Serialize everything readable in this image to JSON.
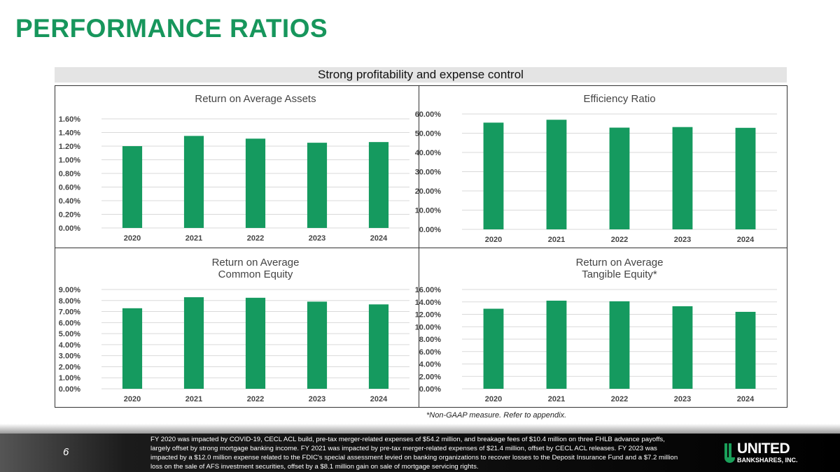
{
  "title": "PERFORMANCE RATIOS",
  "banner": "Strong profitability and expense control",
  "note": "*Non-GAAP measure.  Refer to appendix.",
  "footer": {
    "page": "6",
    "text": "FY 2020 was impacted by COVID-19, CECL ACL build, pre-tax merger-related expenses of $54.2 million, and breakage fees of $10.4 million on three FHLB advance payoffs, largely offset by strong mortgage banking income. FY 2021 was impacted by pre-tax merger-related expenses of $21.4 million, offset by CECL ACL releases. FY 2023 was impacted by a $12.0 million expense related to the FDIC's special assessment levied on banking organizations to recover losses to the Deposit Insurance Fund and a $7.2 million loss on the sale of AFS investment securities, offset by a $8.1 million gain on sale of mortgage servicing rights.",
    "logo_name": "UNITED",
    "logo_sub": "BANKSHARES, INC."
  },
  "colors": {
    "bar": "#159a5f",
    "title": "#17965c",
    "grid": "#d9d9d9"
  },
  "chart_data": [
    {
      "type": "bar",
      "title": [
        "Return on Average Assets"
      ],
      "categories": [
        "2020",
        "2021",
        "2022",
        "2023",
        "2024"
      ],
      "values": [
        1.2,
        1.35,
        1.31,
        1.25,
        1.26
      ],
      "ylim": [
        0,
        1.6
      ],
      "ystep": 0.2,
      "decimals": 2,
      "yticks": [
        "0.00%",
        "0.20%",
        "0.40%",
        "0.60%",
        "0.80%",
        "1.00%",
        "1.20%",
        "1.40%",
        "1.60%"
      ],
      "grid": true
    },
    {
      "type": "bar",
      "title": [
        "Efficiency Ratio"
      ],
      "categories": [
        "2020",
        "2021",
        "2022",
        "2023",
        "2024"
      ],
      "values": [
        55.5,
        57.0,
        52.9,
        53.2,
        52.8
      ],
      "ylim": [
        0,
        60
      ],
      "ystep": 10,
      "yticks": [
        "0.00%",
        "10.00%",
        "20.00%",
        "30.00%",
        "40.00%",
        "50.00%",
        "60.00%"
      ],
      "grid": true
    },
    {
      "type": "bar",
      "title": [
        "Return on Average",
        "Common Equity"
      ],
      "categories": [
        "2020",
        "2021",
        "2022",
        "2023",
        "2024"
      ],
      "values": [
        7.3,
        8.3,
        8.25,
        7.9,
        7.65
      ],
      "ylim": [
        0,
        9
      ],
      "ystep": 1,
      "yticks": [
        "0.00%",
        "1.00%",
        "2.00%",
        "3.00%",
        "4.00%",
        "5.00%",
        "6.00%",
        "7.00%",
        "8.00%",
        "9.00%"
      ],
      "grid": true
    },
    {
      "type": "bar",
      "title": [
        "Return on Average",
        "Tangible Equity*"
      ],
      "categories": [
        "2020",
        "2021",
        "2022",
        "2023",
        "2024"
      ],
      "values": [
        12.9,
        14.2,
        14.1,
        13.3,
        12.4
      ],
      "ylim": [
        0,
        16
      ],
      "ystep": 2,
      "yticks": [
        "0.00%",
        "2.00%",
        "4.00%",
        "6.00%",
        "8.00%",
        "10.00%",
        "12.00%",
        "14.00%",
        "16.00%"
      ],
      "grid": true
    }
  ]
}
